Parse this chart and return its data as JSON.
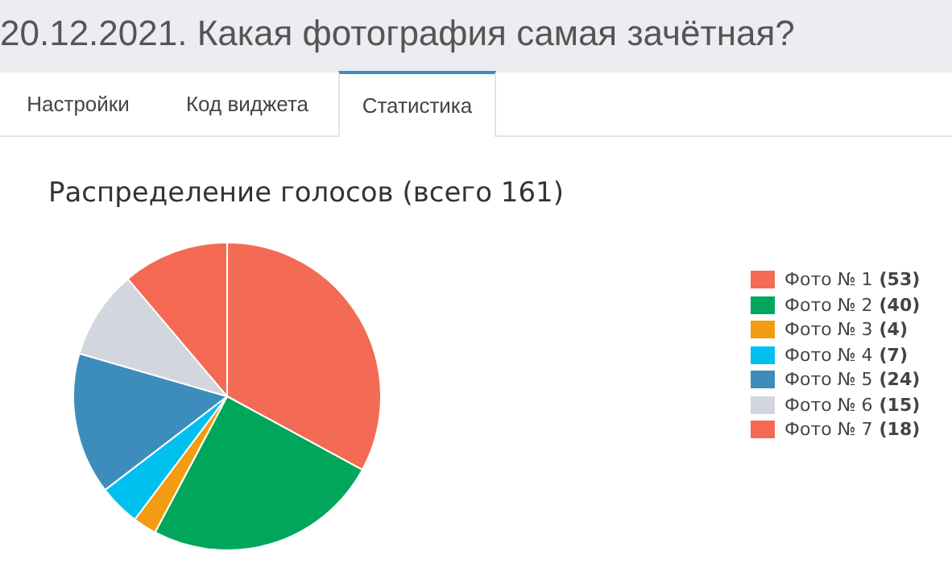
{
  "chart_data": {
    "type": "pie",
    "title": "20.12.2021. Какая фотография самая зачётная?",
    "subtitle": "Распределение голосов (всего 161)",
    "annotations": [
      "Настройки",
      "Код виджета",
      "Статистика"
    ],
    "categories": [
      "Фото № 1",
      "Фото № 2",
      "Фото № 3",
      "Фото № 4",
      "Фото № 5",
      "Фото № 6",
      "Фото № 7"
    ],
    "values": [
      53,
      40,
      4,
      7,
      24,
      15,
      18
    ],
    "colors": [
      "#f36b55",
      "#00a65a",
      "#f39c12",
      "#00c0ef",
      "#3c8dbc",
      "#d2d6de",
      "#f56954"
    ],
    "value_labels": [
      "(53)",
      "(40)",
      "(4)",
      "(7)",
      "(24)",
      "(15)",
      "(18)"
    ],
    "legend": "right"
  }
}
